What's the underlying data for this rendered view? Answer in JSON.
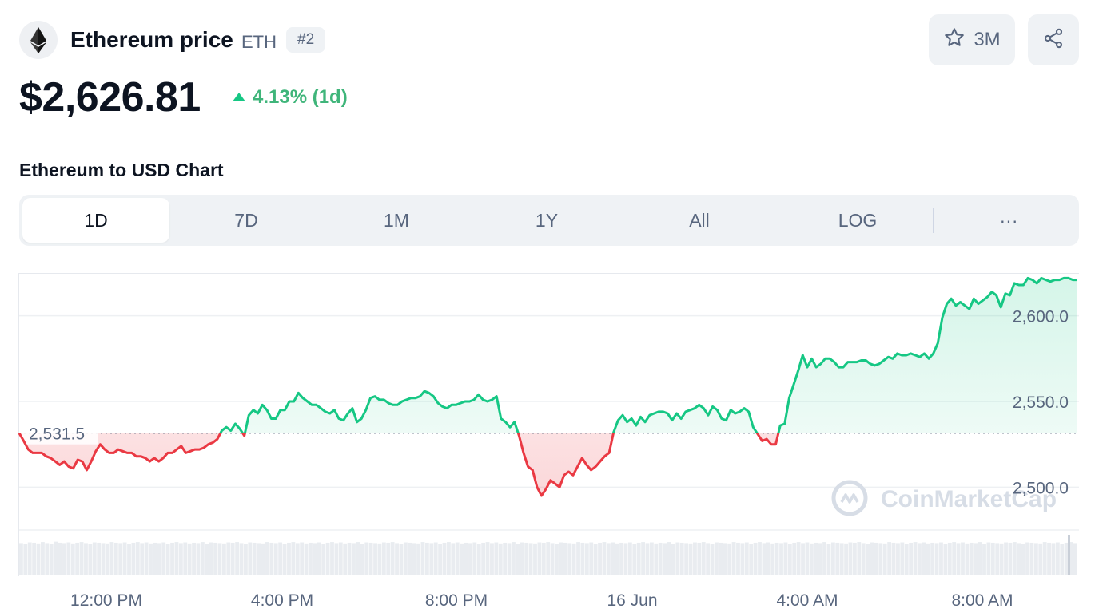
{
  "header": {
    "coin_name": "Ethereum price",
    "symbol": "ETH",
    "rank": "#2",
    "watchlist_count": "3M",
    "logo_icon": "ethereum-logo-icon",
    "star_icon": "star-icon",
    "share_icon": "share-icon"
  },
  "price": {
    "value": "$2,626.81",
    "change": "4.13% (1d)",
    "direction": "up",
    "up_color": "#16c784",
    "down_color": "#ea3943"
  },
  "chart_title": "Ethereum to USD Chart",
  "tabs": [
    {
      "label": "1D",
      "active": true
    },
    {
      "label": "7D",
      "active": false
    },
    {
      "label": "1M",
      "active": false
    },
    {
      "label": "1Y",
      "active": false
    },
    {
      "label": "All",
      "active": false
    },
    {
      "label": "LOG",
      "active": false
    },
    {
      "label": "···",
      "active": false
    }
  ],
  "watermark": "CoinMarketCap",
  "chart_data": {
    "type": "line",
    "title": "",
    "xlabel": "",
    "ylabel": "",
    "x_ticks": [
      "12:00 PM",
      "4:00 PM",
      "8:00 PM",
      "16 Jun",
      "4:00 AM",
      "8:00 AM"
    ],
    "y_ticks": [
      "2,500.0",
      "2,550.0",
      "2,600.0"
    ],
    "y_tick_values": [
      2500,
      2550,
      2600
    ],
    "ylim": [
      2475,
      2625
    ],
    "reference": {
      "value": 2531.5,
      "label": "2,531.5"
    },
    "grid": true,
    "series": [
      {
        "values": [
          2531.5,
          2527,
          2522,
          2520,
          2520,
          2520,
          2518,
          2517,
          2515,
          2513,
          2515,
          2512,
          2511,
          2516,
          2515,
          2510,
          2515,
          2521,
          2525,
          2522,
          2520,
          2520,
          2522,
          2521,
          2520,
          2520,
          2518,
          2518,
          2517,
          2515,
          2517,
          2515,
          2517,
          2520,
          2520,
          2522,
          2524,
          2520,
          2521,
          2522,
          2522,
          2523,
          2525,
          2526,
          2528,
          2533,
          2535,
          2533,
          2537,
          2534,
          2530,
          2542,
          2545,
          2543,
          2548,
          2545,
          2540,
          2540,
          2545,
          2545,
          2550,
          2550,
          2555,
          2552,
          2550,
          2548,
          2548,
          2546,
          2544,
          2543,
          2545,
          2540,
          2539,
          2543,
          2546,
          2538,
          2540,
          2545,
          2552,
          2553,
          2551,
          2551,
          2549,
          2548,
          2548,
          2550,
          2551,
          2552,
          2552,
          2553,
          2556,
          2555,
          2553,
          2549,
          2547,
          2546,
          2548,
          2548,
          2549,
          2550,
          2550,
          2551,
          2554,
          2551,
          2550,
          2551,
          2553,
          2540,
          2538,
          2535,
          2538,
          2530,
          2520,
          2512,
          2510,
          2500,
          2495,
          2499,
          2504,
          2502,
          2500,
          2507,
          2509,
          2507,
          2512,
          2517,
          2513,
          2510,
          2512,
          2515,
          2518,
          2520,
          2532,
          2539,
          2542,
          2538,
          2540,
          2536,
          2541,
          2538,
          2542,
          2543,
          2544,
          2544,
          2543,
          2539,
          2543,
          2540,
          2544,
          2545,
          2546,
          2548,
          2546,
          2542,
          2547,
          2545,
          2540,
          2539,
          2545,
          2543,
          2544,
          2546,
          2544,
          2535,
          2531,
          2527,
          2528,
          2525,
          2525,
          2536,
          2537,
          2552,
          2560,
          2568,
          2577,
          2570,
          2575,
          2570,
          2572,
          2575,
          2575,
          2573,
          2570,
          2570,
          2573,
          2573,
          2573,
          2574,
          2574,
          2572,
          2571,
          2572,
          2574,
          2576,
          2575,
          2578,
          2577,
          2577,
          2578,
          2577,
          2576,
          2578,
          2575,
          2578,
          2584,
          2599,
          2607,
          2610,
          2606,
          2608,
          2606,
          2604,
          2610,
          2607,
          2609,
          2611,
          2614,
          2612,
          2605,
          2613,
          2612,
          2619,
          2618,
          2618,
          2622,
          2621,
          2619,
          2622,
          2621,
          2620,
          2621,
          2621,
          2622,
          2622,
          2621,
          2621
        ]
      }
    ],
    "volume": [
      90,
      88,
      92,
      91,
      89,
      93,
      90,
      88,
      94,
      91,
      90,
      92,
      89,
      91,
      93,
      90,
      88,
      92,
      91,
      90,
      89,
      93,
      91,
      90,
      92,
      88,
      91,
      93,
      90,
      92,
      89,
      91,
      90,
      92,
      88,
      91,
      93,
      90,
      92,
      89,
      91,
      90,
      93,
      88,
      92,
      91,
      90,
      89,
      92,
      91,
      93,
      90,
      88,
      92,
      91,
      90,
      89,
      93,
      91,
      90,
      92,
      88,
      91,
      93,
      90,
      92,
      89,
      91,
      90,
      92,
      88,
      91,
      93,
      90,
      92,
      89,
      91,
      90,
      93,
      88,
      92,
      91,
      90,
      89,
      92,
      91,
      93,
      90,
      88,
      92,
      91,
      90,
      89,
      93,
      91,
      90,
      92,
      88,
      91,
      93,
      90,
      92,
      89,
      91,
      90,
      92,
      88,
      91,
      93,
      90,
      92,
      89,
      91,
      90,
      93,
      88,
      92,
      91,
      90,
      89,
      92,
      91,
      93,
      90,
      88,
      92,
      91,
      90,
      89,
      93,
      91,
      90,
      92,
      88,
      91,
      93,
      90,
      92,
      89,
      91,
      90,
      92,
      88,
      91,
      93,
      90,
      92,
      89,
      91,
      90,
      93,
      88,
      92,
      91,
      90,
      89,
      92,
      91,
      93,
      90,
      88,
      92,
      91,
      90,
      89,
      93,
      91,
      90,
      92,
      88,
      91,
      93,
      90,
      92,
      89,
      91,
      90,
      92,
      88,
      91,
      93,
      90,
      92,
      89,
      91,
      90,
      93,
      88,
      92,
      91,
      90,
      89,
      92,
      91,
      93,
      90,
      88,
      92,
      91,
      90,
      89,
      93,
      91,
      90,
      92,
      88,
      91,
      93,
      90,
      92,
      89,
      91,
      90,
      92,
      88,
      91,
      93,
      90,
      92,
      89,
      91,
      90,
      93,
      88,
      92,
      91,
      90,
      89,
      92,
      91,
      93,
      90,
      88,
      92,
      91,
      90,
      89,
      93,
      91,
      90,
      92,
      88,
      91,
      93,
      90
    ]
  }
}
